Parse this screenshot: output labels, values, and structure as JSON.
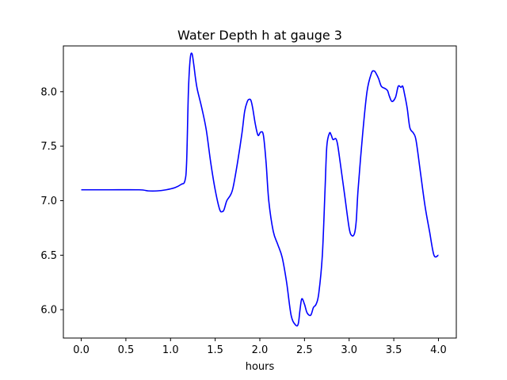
{
  "chart_data": {
    "type": "line",
    "title": "Water Depth h at gauge 3",
    "xlabel": "hours",
    "ylabel": "",
    "xlim": [
      -0.2,
      4.2
    ],
    "ylim": [
      5.74,
      8.42
    ],
    "xticks": [
      0.0,
      0.5,
      1.0,
      1.5,
      2.0,
      2.5,
      3.0,
      3.5,
      4.0
    ],
    "xtick_labels": [
      "0.0",
      "0.5",
      "1.0",
      "1.5",
      "2.0",
      "2.5",
      "3.0",
      "3.5",
      "4.0"
    ],
    "yticks": [
      6.0,
      6.5,
      7.0,
      7.5,
      8.0
    ],
    "ytick_labels": [
      "6.0",
      "6.5",
      "7.0",
      "7.5",
      "8.0"
    ],
    "grid": false,
    "series": [
      {
        "name": "h",
        "color": "#0000ff",
        "x": [
          0.0,
          0.3,
          0.65,
          0.75,
          0.85,
          0.95,
          1.05,
          1.12,
          1.16,
          1.18,
          1.2,
          1.22,
          1.24,
          1.26,
          1.28,
          1.3,
          1.35,
          1.4,
          1.45,
          1.5,
          1.55,
          1.58,
          1.6,
          1.63,
          1.67,
          1.7,
          1.75,
          1.8,
          1.83,
          1.86,
          1.88,
          1.9,
          1.92,
          1.95,
          1.98,
          2.01,
          2.04,
          2.07,
          2.1,
          2.15,
          2.2,
          2.25,
          2.3,
          2.35,
          2.4,
          2.43,
          2.45,
          2.47,
          2.5,
          2.53,
          2.57,
          2.6,
          2.63,
          2.66,
          2.7,
          2.73,
          2.75,
          2.78,
          2.8,
          2.82,
          2.85,
          2.87,
          2.9,
          2.95,
          3.0,
          3.03,
          3.06,
          3.08,
          3.1,
          3.15,
          3.2,
          3.25,
          3.28,
          3.3,
          3.33,
          3.36,
          3.4,
          3.43,
          3.45,
          3.48,
          3.52,
          3.55,
          3.58,
          3.6,
          3.62,
          3.65,
          3.68,
          3.72,
          3.75,
          3.8,
          3.85,
          3.9,
          3.95,
          4.0
        ],
        "values": [
          7.1,
          7.1,
          7.1,
          7.09,
          7.09,
          7.1,
          7.12,
          7.15,
          7.18,
          7.35,
          8.0,
          8.3,
          8.35,
          8.25,
          8.12,
          8.02,
          7.85,
          7.65,
          7.35,
          7.1,
          6.92,
          6.9,
          6.92,
          7.0,
          7.05,
          7.12,
          7.35,
          7.62,
          7.82,
          7.91,
          7.93,
          7.92,
          7.85,
          7.7,
          7.6,
          7.63,
          7.6,
          7.35,
          7.0,
          6.72,
          6.6,
          6.48,
          6.25,
          5.95,
          5.86,
          5.87,
          6.0,
          6.1,
          6.05,
          5.97,
          5.95,
          6.02,
          6.05,
          6.15,
          6.5,
          7.1,
          7.5,
          7.62,
          7.6,
          7.56,
          7.57,
          7.52,
          7.35,
          7.05,
          6.75,
          6.68,
          6.7,
          6.82,
          7.1,
          7.6,
          8.0,
          8.17,
          8.19,
          8.17,
          8.12,
          8.05,
          8.03,
          8.01,
          7.96,
          7.91,
          7.95,
          8.05,
          8.04,
          8.05,
          7.98,
          7.85,
          7.67,
          7.62,
          7.55,
          7.25,
          6.95,
          6.72,
          6.5,
          6.5
        ]
      }
    ]
  }
}
